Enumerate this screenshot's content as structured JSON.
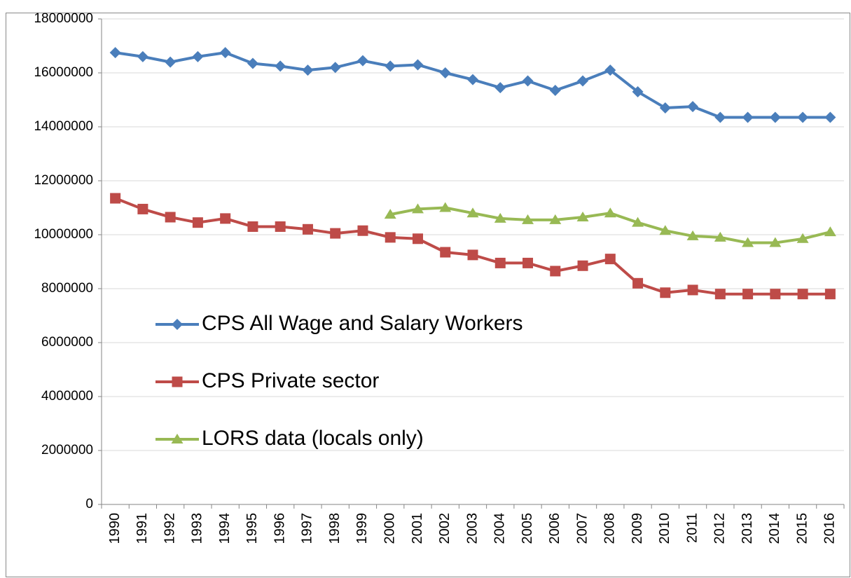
{
  "chart_data": {
    "type": "line",
    "categories": [
      "1990",
      "1991",
      "1992",
      "1993",
      "1994",
      "1995",
      "1996",
      "1997",
      "1998",
      "1999",
      "2000",
      "2001",
      "2002",
      "2003",
      "2004",
      "2005",
      "2006",
      "2007",
      "2008",
      "2009",
      "2010",
      "2011",
      "2012",
      "2013",
      "2014",
      "2015",
      "2016"
    ],
    "series": [
      {
        "name": "CPS All Wage and Salary Workers",
        "color": "#4a7ebb",
        "marker": "diamond",
        "values": [
          16750000,
          16600000,
          16400000,
          16600000,
          16750000,
          16350000,
          16250000,
          16100000,
          16200000,
          16450000,
          16250000,
          16300000,
          16000000,
          15750000,
          15450000,
          15700000,
          15350000,
          15700000,
          16100000,
          15300000,
          14700000,
          14750000,
          14350000,
          14350000,
          14350000,
          14350000,
          14350000
        ]
      },
      {
        "name": "CPS Private sector",
        "color": "#be4b48",
        "marker": "square",
        "values": [
          11350000,
          10950000,
          10650000,
          10450000,
          10600000,
          10300000,
          10300000,
          10200000,
          10050000,
          10150000,
          9900000,
          9850000,
          9350000,
          9250000,
          8950000,
          8950000,
          8650000,
          8850000,
          9100000,
          8200000,
          7850000,
          7950000,
          7800000,
          7800000,
          7800000,
          7800000,
          7800000
        ]
      },
      {
        "name": "LORS data (locals only)",
        "color": "#98b954",
        "marker": "triangle",
        "values": [
          null,
          null,
          null,
          null,
          null,
          null,
          null,
          null,
          null,
          null,
          10750000,
          10950000,
          11000000,
          10800000,
          10600000,
          10550000,
          10550000,
          10650000,
          10800000,
          10450000,
          10150000,
          9950000,
          9900000,
          9700000,
          9700000,
          9850000,
          10100000
        ]
      }
    ],
    "ylim": [
      0,
      18000000
    ],
    "yticks": [
      0,
      2000000,
      4000000,
      6000000,
      8000000,
      10000000,
      12000000,
      14000000,
      16000000,
      18000000
    ],
    "grid": true,
    "legend": "left"
  }
}
